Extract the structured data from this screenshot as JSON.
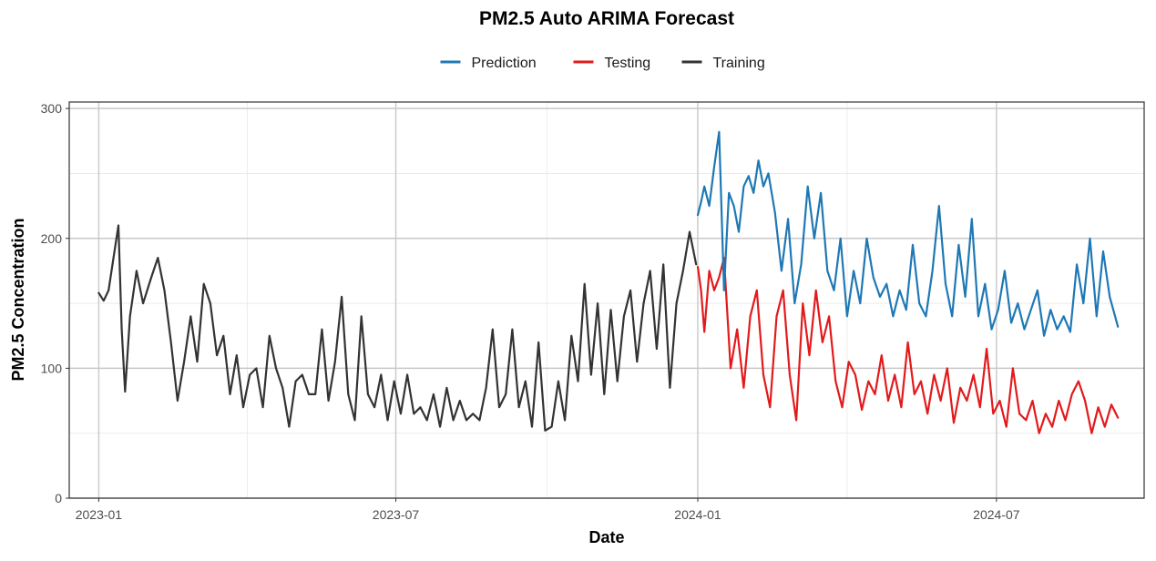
{
  "chart_data": {
    "type": "line",
    "title": "PM2.5 Auto ARIMA Forecast",
    "xlabel": "Date",
    "ylabel": "PM2.5 Concentration",
    "x_ticks": [
      "2023-01",
      "2023-07",
      "2024-01",
      "2024-07"
    ],
    "y_ticks": [
      "0",
      "100",
      "200",
      "300"
    ],
    "xlim": [
      "2022-12-14",
      "2024-09-29"
    ],
    "ylim": [
      0,
      305
    ],
    "grid": true,
    "legend_position": "top",
    "legend": [
      {
        "name": "Prediction",
        "color": "#1f78b4"
      },
      {
        "name": "Testing",
        "color": "#e31a1c"
      },
      {
        "name": "Training",
        "color": "#333333"
      }
    ],
    "series": [
      {
        "name": "Training",
        "color": "#333333",
        "points": [
          [
            "2023-01-01",
            158
          ],
          [
            "2023-01-04",
            152
          ],
          [
            "2023-01-07",
            160
          ],
          [
            "2023-01-10",
            185
          ],
          [
            "2023-01-13",
            210
          ],
          [
            "2023-01-15",
            130
          ],
          [
            "2023-01-17",
            82
          ],
          [
            "2023-01-20",
            140
          ],
          [
            "2023-01-24",
            175
          ],
          [
            "2023-01-28",
            150
          ],
          [
            "2023-02-02",
            170
          ],
          [
            "2023-02-06",
            185
          ],
          [
            "2023-02-10",
            160
          ],
          [
            "2023-02-14",
            120
          ],
          [
            "2023-02-18",
            75
          ],
          [
            "2023-02-22",
            105
          ],
          [
            "2023-02-26",
            140
          ],
          [
            "2023-03-02",
            105
          ],
          [
            "2023-03-06",
            165
          ],
          [
            "2023-03-10",
            150
          ],
          [
            "2023-03-14",
            110
          ],
          [
            "2023-03-18",
            125
          ],
          [
            "2023-03-22",
            80
          ],
          [
            "2023-03-26",
            110
          ],
          [
            "2023-03-30",
            70
          ],
          [
            "2023-04-03",
            95
          ],
          [
            "2023-04-07",
            100
          ],
          [
            "2023-04-11",
            70
          ],
          [
            "2023-04-15",
            125
          ],
          [
            "2023-04-19",
            100
          ],
          [
            "2023-04-23",
            85
          ],
          [
            "2023-04-27",
            55
          ],
          [
            "2023-05-01",
            90
          ],
          [
            "2023-05-05",
            95
          ],
          [
            "2023-05-09",
            80
          ],
          [
            "2023-05-13",
            80
          ],
          [
            "2023-05-17",
            130
          ],
          [
            "2023-05-21",
            75
          ],
          [
            "2023-05-25",
            105
          ],
          [
            "2023-05-29",
            155
          ],
          [
            "2023-06-02",
            80
          ],
          [
            "2023-06-06",
            60
          ],
          [
            "2023-06-10",
            140
          ],
          [
            "2023-06-14",
            80
          ],
          [
            "2023-06-18",
            70
          ],
          [
            "2023-06-22",
            95
          ],
          [
            "2023-06-26",
            60
          ],
          [
            "2023-06-30",
            90
          ],
          [
            "2023-07-04",
            65
          ],
          [
            "2023-07-08",
            95
          ],
          [
            "2023-07-12",
            65
          ],
          [
            "2023-07-16",
            70
          ],
          [
            "2023-07-20",
            60
          ],
          [
            "2023-07-24",
            80
          ],
          [
            "2023-07-28",
            55
          ],
          [
            "2023-08-01",
            85
          ],
          [
            "2023-08-05",
            60
          ],
          [
            "2023-08-09",
            75
          ],
          [
            "2023-08-13",
            60
          ],
          [
            "2023-08-17",
            65
          ],
          [
            "2023-08-21",
            60
          ],
          [
            "2023-08-25",
            85
          ],
          [
            "2023-08-29",
            130
          ],
          [
            "2023-09-02",
            70
          ],
          [
            "2023-09-06",
            80
          ],
          [
            "2023-09-10",
            130
          ],
          [
            "2023-09-14",
            70
          ],
          [
            "2023-09-18",
            90
          ],
          [
            "2023-09-22",
            55
          ],
          [
            "2023-09-26",
            120
          ],
          [
            "2023-09-30",
            52
          ],
          [
            "2023-10-04",
            55
          ],
          [
            "2023-10-08",
            90
          ],
          [
            "2023-10-12",
            60
          ],
          [
            "2023-10-16",
            125
          ],
          [
            "2023-10-20",
            90
          ],
          [
            "2023-10-24",
            165
          ],
          [
            "2023-10-28",
            95
          ],
          [
            "2023-11-01",
            150
          ],
          [
            "2023-11-05",
            80
          ],
          [
            "2023-11-09",
            145
          ],
          [
            "2023-11-13",
            90
          ],
          [
            "2023-11-17",
            140
          ],
          [
            "2023-11-21",
            160
          ],
          [
            "2023-11-25",
            105
          ],
          [
            "2023-11-29",
            150
          ],
          [
            "2023-12-03",
            175
          ],
          [
            "2023-12-07",
            115
          ],
          [
            "2023-12-11",
            180
          ],
          [
            "2023-12-15",
            85
          ],
          [
            "2023-12-19",
            150
          ],
          [
            "2023-12-23",
            175
          ],
          [
            "2023-12-27",
            205
          ],
          [
            "2023-12-31",
            180
          ]
        ]
      },
      {
        "name": "Testing",
        "color": "#e31a1c",
        "points": [
          [
            "2024-01-01",
            178
          ],
          [
            "2024-01-03",
            160
          ],
          [
            "2024-01-05",
            128
          ],
          [
            "2024-01-08",
            175
          ],
          [
            "2024-01-11",
            160
          ],
          [
            "2024-01-14",
            170
          ],
          [
            "2024-01-17",
            185
          ],
          [
            "2024-01-21",
            100
          ],
          [
            "2024-01-25",
            130
          ],
          [
            "2024-01-29",
            85
          ],
          [
            "2024-02-02",
            140
          ],
          [
            "2024-02-06",
            160
          ],
          [
            "2024-02-10",
            95
          ],
          [
            "2024-02-14",
            70
          ],
          [
            "2024-02-18",
            140
          ],
          [
            "2024-02-22",
            160
          ],
          [
            "2024-02-26",
            95
          ],
          [
            "2024-03-01",
            60
          ],
          [
            "2024-03-05",
            150
          ],
          [
            "2024-03-09",
            110
          ],
          [
            "2024-03-13",
            160
          ],
          [
            "2024-03-17",
            120
          ],
          [
            "2024-03-21",
            140
          ],
          [
            "2024-03-25",
            90
          ],
          [
            "2024-03-29",
            70
          ],
          [
            "2024-04-02",
            105
          ],
          [
            "2024-04-06",
            95
          ],
          [
            "2024-04-10",
            68
          ],
          [
            "2024-04-14",
            90
          ],
          [
            "2024-04-18",
            80
          ],
          [
            "2024-04-22",
            110
          ],
          [
            "2024-04-26",
            75
          ],
          [
            "2024-04-30",
            95
          ],
          [
            "2024-05-04",
            70
          ],
          [
            "2024-05-08",
            120
          ],
          [
            "2024-05-12",
            80
          ],
          [
            "2024-05-16",
            90
          ],
          [
            "2024-05-20",
            65
          ],
          [
            "2024-05-24",
            95
          ],
          [
            "2024-05-28",
            75
          ],
          [
            "2024-06-01",
            100
          ],
          [
            "2024-06-05",
            58
          ],
          [
            "2024-06-09",
            85
          ],
          [
            "2024-06-13",
            75
          ],
          [
            "2024-06-17",
            95
          ],
          [
            "2024-06-21",
            70
          ],
          [
            "2024-06-25",
            115
          ],
          [
            "2024-06-29",
            65
          ],
          [
            "2024-07-03",
            75
          ],
          [
            "2024-07-07",
            55
          ],
          [
            "2024-07-11",
            100
          ],
          [
            "2024-07-15",
            65
          ],
          [
            "2024-07-19",
            60
          ],
          [
            "2024-07-23",
            75
          ],
          [
            "2024-07-27",
            50
          ],
          [
            "2024-07-31",
            65
          ],
          [
            "2024-08-04",
            55
          ],
          [
            "2024-08-08",
            75
          ],
          [
            "2024-08-12",
            60
          ],
          [
            "2024-08-16",
            80
          ],
          [
            "2024-08-20",
            90
          ],
          [
            "2024-08-24",
            75
          ],
          [
            "2024-08-28",
            50
          ],
          [
            "2024-09-01",
            70
          ],
          [
            "2024-09-05",
            55
          ],
          [
            "2024-09-09",
            72
          ],
          [
            "2024-09-13",
            62
          ]
        ]
      },
      {
        "name": "Prediction",
        "color": "#1f78b4",
        "points": [
          [
            "2024-01-01",
            218
          ],
          [
            "2024-01-03",
            228
          ],
          [
            "2024-01-05",
            240
          ],
          [
            "2024-01-08",
            225
          ],
          [
            "2024-01-11",
            255
          ],
          [
            "2024-01-14",
            282
          ],
          [
            "2024-01-17",
            160
          ],
          [
            "2024-01-20",
            235
          ],
          [
            "2024-01-23",
            225
          ],
          [
            "2024-01-26",
            205
          ],
          [
            "2024-01-29",
            240
          ],
          [
            "2024-02-01",
            248
          ],
          [
            "2024-02-04",
            235
          ],
          [
            "2024-02-07",
            260
          ],
          [
            "2024-02-10",
            240
          ],
          [
            "2024-02-13",
            250
          ],
          [
            "2024-02-17",
            220
          ],
          [
            "2024-02-21",
            175
          ],
          [
            "2024-02-25",
            215
          ],
          [
            "2024-02-29",
            150
          ],
          [
            "2024-03-04",
            180
          ],
          [
            "2024-03-08",
            240
          ],
          [
            "2024-03-12",
            200
          ],
          [
            "2024-03-16",
            235
          ],
          [
            "2024-03-20",
            175
          ],
          [
            "2024-03-24",
            160
          ],
          [
            "2024-03-28",
            200
          ],
          [
            "2024-04-01",
            140
          ],
          [
            "2024-04-05",
            175
          ],
          [
            "2024-04-09",
            150
          ],
          [
            "2024-04-13",
            200
          ],
          [
            "2024-04-17",
            170
          ],
          [
            "2024-04-21",
            155
          ],
          [
            "2024-04-25",
            165
          ],
          [
            "2024-04-29",
            140
          ],
          [
            "2024-05-03",
            160
          ],
          [
            "2024-05-07",
            145
          ],
          [
            "2024-05-11",
            195
          ],
          [
            "2024-05-15",
            150
          ],
          [
            "2024-05-19",
            140
          ],
          [
            "2024-05-23",
            175
          ],
          [
            "2024-05-27",
            225
          ],
          [
            "2024-05-31",
            165
          ],
          [
            "2024-06-04",
            140
          ],
          [
            "2024-06-08",
            195
          ],
          [
            "2024-06-12",
            155
          ],
          [
            "2024-06-16",
            215
          ],
          [
            "2024-06-20",
            140
          ],
          [
            "2024-06-24",
            165
          ],
          [
            "2024-06-28",
            130
          ],
          [
            "2024-07-02",
            145
          ],
          [
            "2024-07-06",
            175
          ],
          [
            "2024-07-10",
            135
          ],
          [
            "2024-07-14",
            150
          ],
          [
            "2024-07-18",
            130
          ],
          [
            "2024-07-22",
            145
          ],
          [
            "2024-07-26",
            160
          ],
          [
            "2024-07-30",
            125
          ],
          [
            "2024-08-03",
            145
          ],
          [
            "2024-08-07",
            130
          ],
          [
            "2024-08-11",
            140
          ],
          [
            "2024-08-15",
            128
          ],
          [
            "2024-08-19",
            180
          ],
          [
            "2024-08-23",
            150
          ],
          [
            "2024-08-27",
            200
          ],
          [
            "2024-08-31",
            140
          ],
          [
            "2024-09-04",
            190
          ],
          [
            "2024-09-08",
            155
          ],
          [
            "2024-09-13",
            132
          ]
        ]
      }
    ]
  }
}
